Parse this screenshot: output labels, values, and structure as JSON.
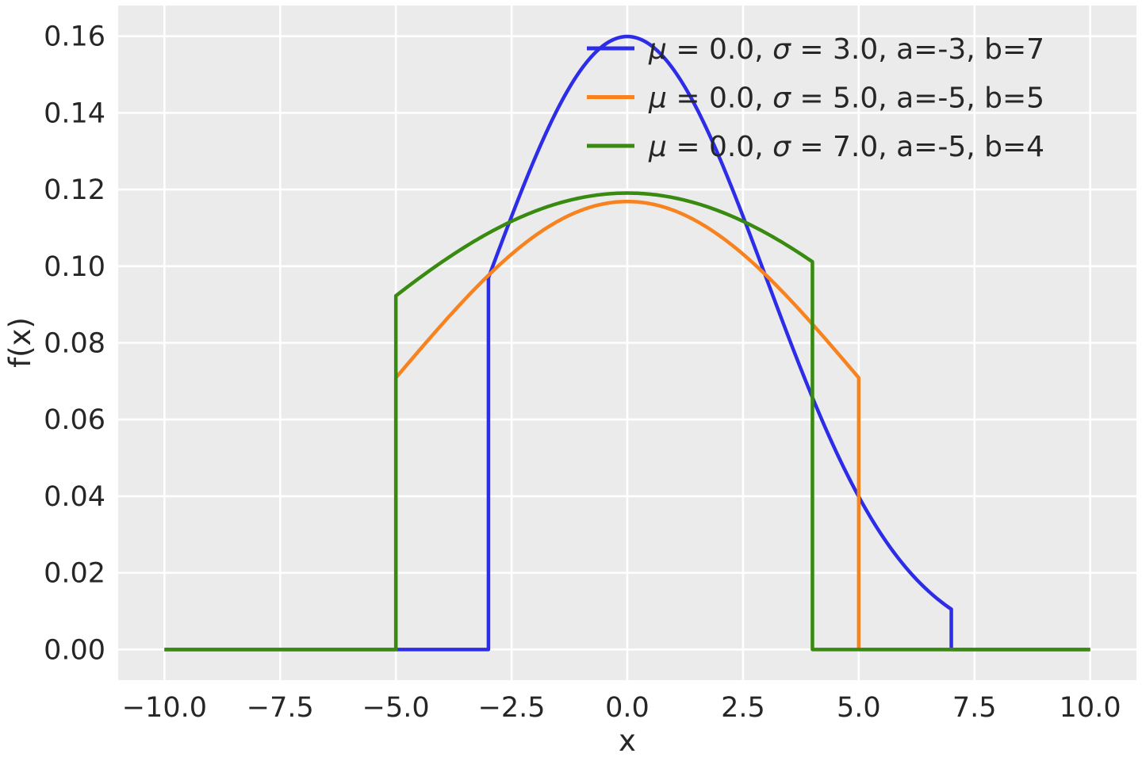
{
  "figure": {
    "background_color": "#ffffff",
    "panel_color": "#ebebeb",
    "grid_color": "#ffffff",
    "text_color": "#262626"
  },
  "chart_data": {
    "type": "line",
    "title": "",
    "xlabel": "x",
    "ylabel": "f(x)",
    "xlim": [
      -11,
      11
    ],
    "ylim": [
      -0.008,
      0.168
    ],
    "x_draw_range": [
      -10,
      10
    ],
    "grid": true,
    "legend_position": "upper right",
    "legend_frame": false,
    "x_ticks": [
      -10.0,
      -7.5,
      -5.0,
      -2.5,
      0.0,
      2.5,
      5.0,
      7.5,
      10.0
    ],
    "x_tick_labels": [
      "−10.0",
      "−7.5",
      "−5.0",
      "−2.5",
      "0.0",
      "2.5",
      "5.0",
      "7.5",
      "10.0"
    ],
    "y_ticks": [
      0.0,
      0.02,
      0.04,
      0.06,
      0.08,
      0.1,
      0.12,
      0.14,
      0.16
    ],
    "y_tick_labels": [
      "0.00",
      "0.02",
      "0.04",
      "0.06",
      "0.08",
      "0.10",
      "0.12",
      "0.14",
      "0.16"
    ],
    "curve_model": "truncated_normal_pdf",
    "series": [
      {
        "label": "μ = 0.0, σ = 3.0, a=-3, b=7",
        "color": "#2d2de8",
        "mu": 0.0,
        "sigma": 3.0,
        "a": -3,
        "b": 7,
        "peak_value": 0.16,
        "value_at_a": 0.097,
        "value_at_b": 0.011
      },
      {
        "label": "μ = 0.0, σ = 5.0, a=-5, b=5",
        "color": "#f7821e",
        "mu": 0.0,
        "sigma": 5.0,
        "a": -5,
        "b": 5,
        "peak_value": 0.117,
        "value_at_a": 0.071,
        "value_at_b": 0.071
      },
      {
        "label": "μ = 0.0, σ = 7.0, a=-5, b=4",
        "color": "#398a10",
        "mu": 0.0,
        "sigma": 7.0,
        "a": -5,
        "b": 4,
        "peak_value": 0.119,
        "value_at_a": 0.092,
        "value_at_b": 0.101
      }
    ],
    "line_width": 4.5
  }
}
